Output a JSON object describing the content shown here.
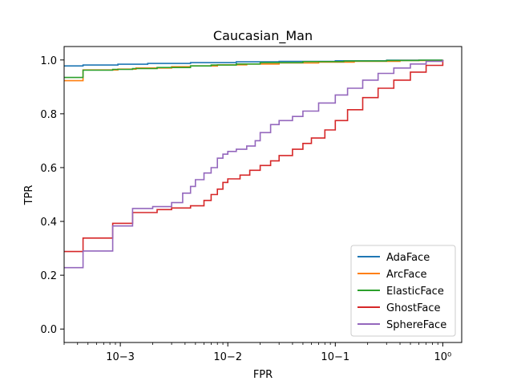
{
  "chart_data": {
    "type": "line",
    "title": "Caucasian_Man",
    "xlabel": "FPR",
    "ylabel": "TPR",
    "xscale": "log",
    "xlim": [
      0.0003,
      1.5
    ],
    "ylim": [
      -0.05,
      1.05
    ],
    "xticks": [
      {
        "value": 0.001,
        "label": "10−3"
      },
      {
        "value": 0.01,
        "label": "10−2"
      },
      {
        "value": 0.1,
        "label": "10−1"
      },
      {
        "value": 1,
        "label": "10⁰"
      }
    ],
    "yticks": [
      {
        "value": 0.0,
        "label": "0.0"
      },
      {
        "value": 0.2,
        "label": "0.2"
      },
      {
        "value": 0.4,
        "label": "0.4"
      },
      {
        "value": 0.6,
        "label": "0.6"
      },
      {
        "value": 0.8,
        "label": "0.8"
      },
      {
        "value": 1.0,
        "label": "1.0"
      }
    ],
    "grid": false,
    "legend_position": "lower-right",
    "step": true,
    "series": [
      {
        "name": "AdaFace",
        "color": "#1f77b4",
        "x": [
          0.0003,
          0.00045,
          0.00095,
          0.0018,
          0.0045,
          0.012,
          0.03,
          0.1,
          0.3,
          1.0
        ],
        "y": [
          0.978,
          0.981,
          0.984,
          0.987,
          0.99,
          0.993,
          0.995,
          0.997,
          0.999,
          1.0
        ]
      },
      {
        "name": "ArcFace",
        "color": "#ff7f0e",
        "x": [
          0.0003,
          0.00045,
          0.00095,
          0.0014,
          0.003,
          0.0045,
          0.008,
          0.015,
          0.03,
          0.07,
          0.15,
          0.4,
          1.0
        ],
        "y": [
          0.923,
          0.963,
          0.966,
          0.97,
          0.975,
          0.978,
          0.982,
          0.985,
          0.989,
          0.992,
          0.995,
          0.998,
          1.0
        ]
      },
      {
        "name": "ElasticFace",
        "color": "#2ca02c",
        "x": [
          0.0003,
          0.00045,
          0.00085,
          0.0013,
          0.0022,
          0.0045,
          0.007,
          0.012,
          0.02,
          0.05,
          0.12,
          0.3,
          0.6,
          1.0
        ],
        "y": [
          0.935,
          0.962,
          0.965,
          0.968,
          0.972,
          0.978,
          0.981,
          0.985,
          0.99,
          0.994,
          0.996,
          0.998,
          0.999,
          1.0
        ]
      },
      {
        "name": "GhostFace",
        "color": "#d62728",
        "x": [
          0.0003,
          0.00045,
          0.00085,
          0.0013,
          0.0022,
          0.003,
          0.0045,
          0.006,
          0.007,
          0.008,
          0.009,
          0.01,
          0.013,
          0.016,
          0.02,
          0.025,
          0.03,
          0.04,
          0.05,
          0.06,
          0.08,
          0.1,
          0.13,
          0.18,
          0.25,
          0.35,
          0.5,
          0.7,
          1.0
        ],
        "y": [
          0.288,
          0.338,
          0.393,
          0.433,
          0.444,
          0.45,
          0.458,
          0.478,
          0.5,
          0.52,
          0.545,
          0.558,
          0.572,
          0.59,
          0.608,
          0.625,
          0.645,
          0.668,
          0.69,
          0.71,
          0.74,
          0.775,
          0.815,
          0.86,
          0.895,
          0.925,
          0.955,
          0.98,
          1.0
        ]
      },
      {
        "name": "SphereFace",
        "color": "#9467bd",
        "x": [
          0.0003,
          0.00045,
          0.00085,
          0.0013,
          0.002,
          0.003,
          0.0038,
          0.0045,
          0.005,
          0.006,
          0.007,
          0.008,
          0.009,
          0.01,
          0.012,
          0.015,
          0.018,
          0.02,
          0.025,
          0.03,
          0.04,
          0.05,
          0.07,
          0.1,
          0.13,
          0.18,
          0.25,
          0.35,
          0.5,
          0.7,
          1.0
        ],
        "y": [
          0.228,
          0.29,
          0.383,
          0.448,
          0.455,
          0.47,
          0.505,
          0.53,
          0.555,
          0.58,
          0.6,
          0.635,
          0.65,
          0.66,
          0.668,
          0.68,
          0.7,
          0.73,
          0.76,
          0.775,
          0.79,
          0.81,
          0.84,
          0.87,
          0.895,
          0.925,
          0.95,
          0.97,
          0.985,
          0.995,
          1.0
        ]
      }
    ]
  }
}
